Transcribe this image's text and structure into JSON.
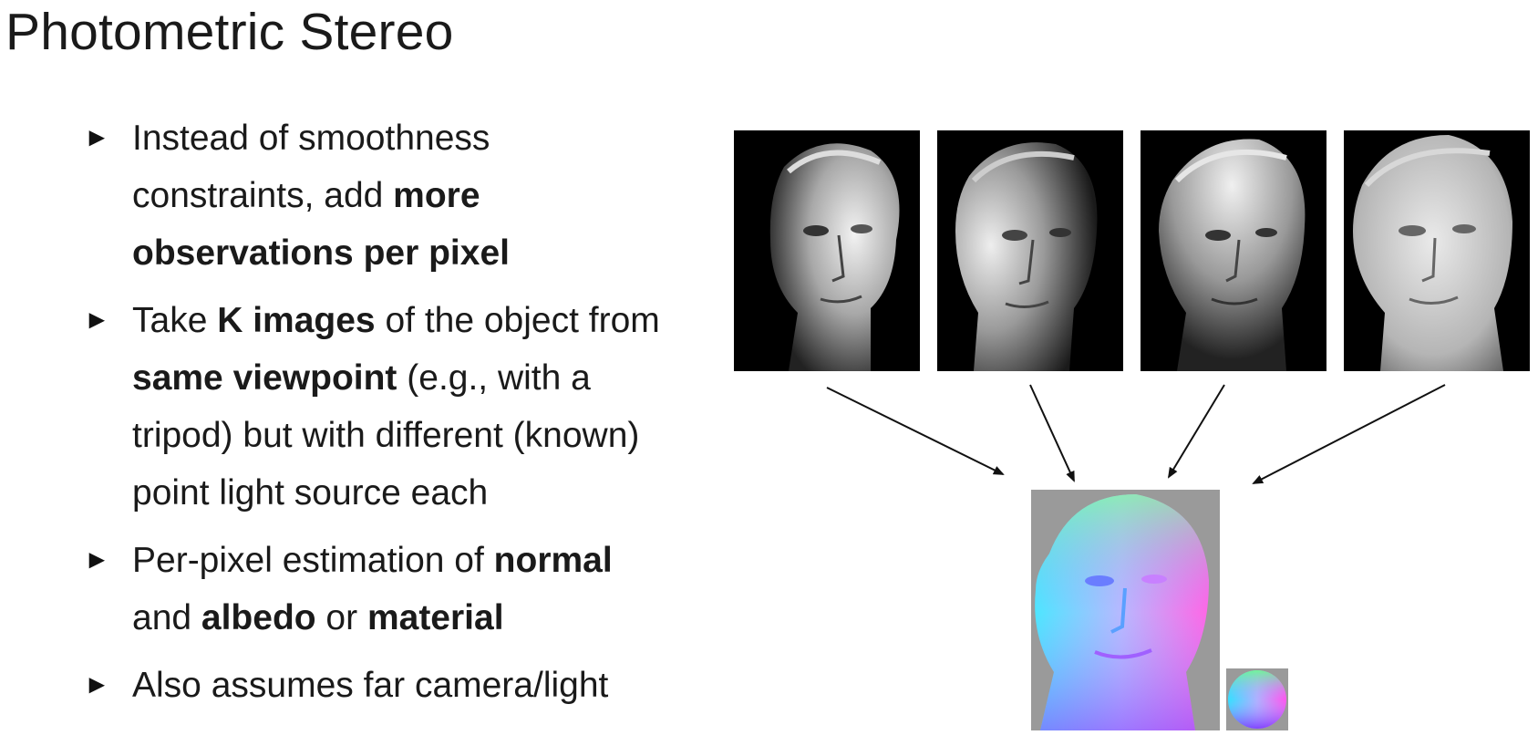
{
  "slide": {
    "title": "Photometric Stereo",
    "bullet_marker": "►",
    "bullets": [
      {
        "t1": "Instead of smoothness constraints, add ",
        "b1": "more observations per pixel"
      },
      {
        "t1": "Take ",
        "b1": "K images",
        "t2": " of the object from ",
        "b2": "same viewpoint",
        "t3": " (e.g., with a tripod) but with different (known) point light source each"
      },
      {
        "t1": "Per-pixel estimation of ",
        "b1": "normal",
        "t2": " and ",
        "b2": "albedo",
        "t3": " or ",
        "b3": "material"
      },
      {
        "t1": "Also assumes far camera/light"
      }
    ]
  },
  "figure": {
    "input_images": [
      {
        "light": "front-right"
      },
      {
        "light": "left"
      },
      {
        "light": "top"
      },
      {
        "light": "front"
      }
    ],
    "output": "normal map",
    "legend": "normal sphere",
    "colors": {
      "background": "#000000",
      "normal_bg": "#9a9a9a",
      "arrow": "#111111"
    }
  }
}
